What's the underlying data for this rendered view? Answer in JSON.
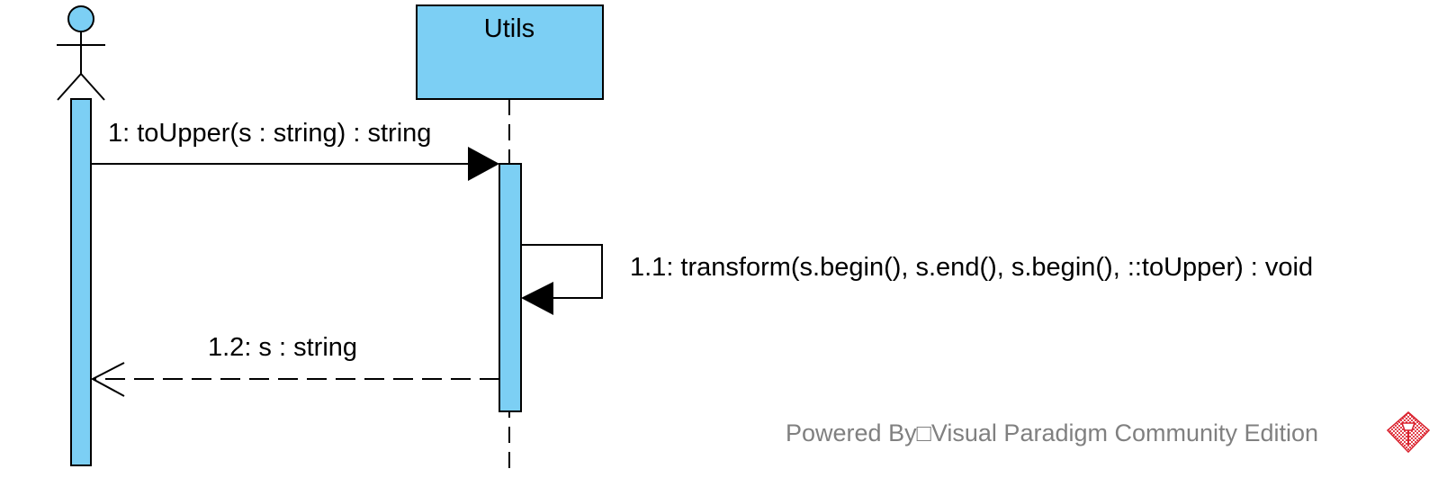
{
  "diagram": {
    "type": "sequence",
    "colors": {
      "fill": "#7ccff4",
      "stroke": "#000000",
      "text": "#000000",
      "watermark": "#808080",
      "logo": "#d9202c"
    },
    "actor": {
      "icon": "stick-figure-actor-icon",
      "name": ""
    },
    "lifelines": [
      {
        "name": "Utils"
      }
    ],
    "messages": [
      {
        "label": "1: toUpper(s : string) : string",
        "kind": "synchronous-call"
      },
      {
        "label": "1.1: transform(s.begin(), s.end(), s.begin(), ::toUpper) : void",
        "kind": "self-call"
      },
      {
        "label": "1.2: s : string",
        "kind": "return"
      }
    ],
    "watermark": {
      "text": "Powered By□Visual Paradigm Community Edition",
      "icon": "visual-paradigm-logo-icon"
    }
  }
}
